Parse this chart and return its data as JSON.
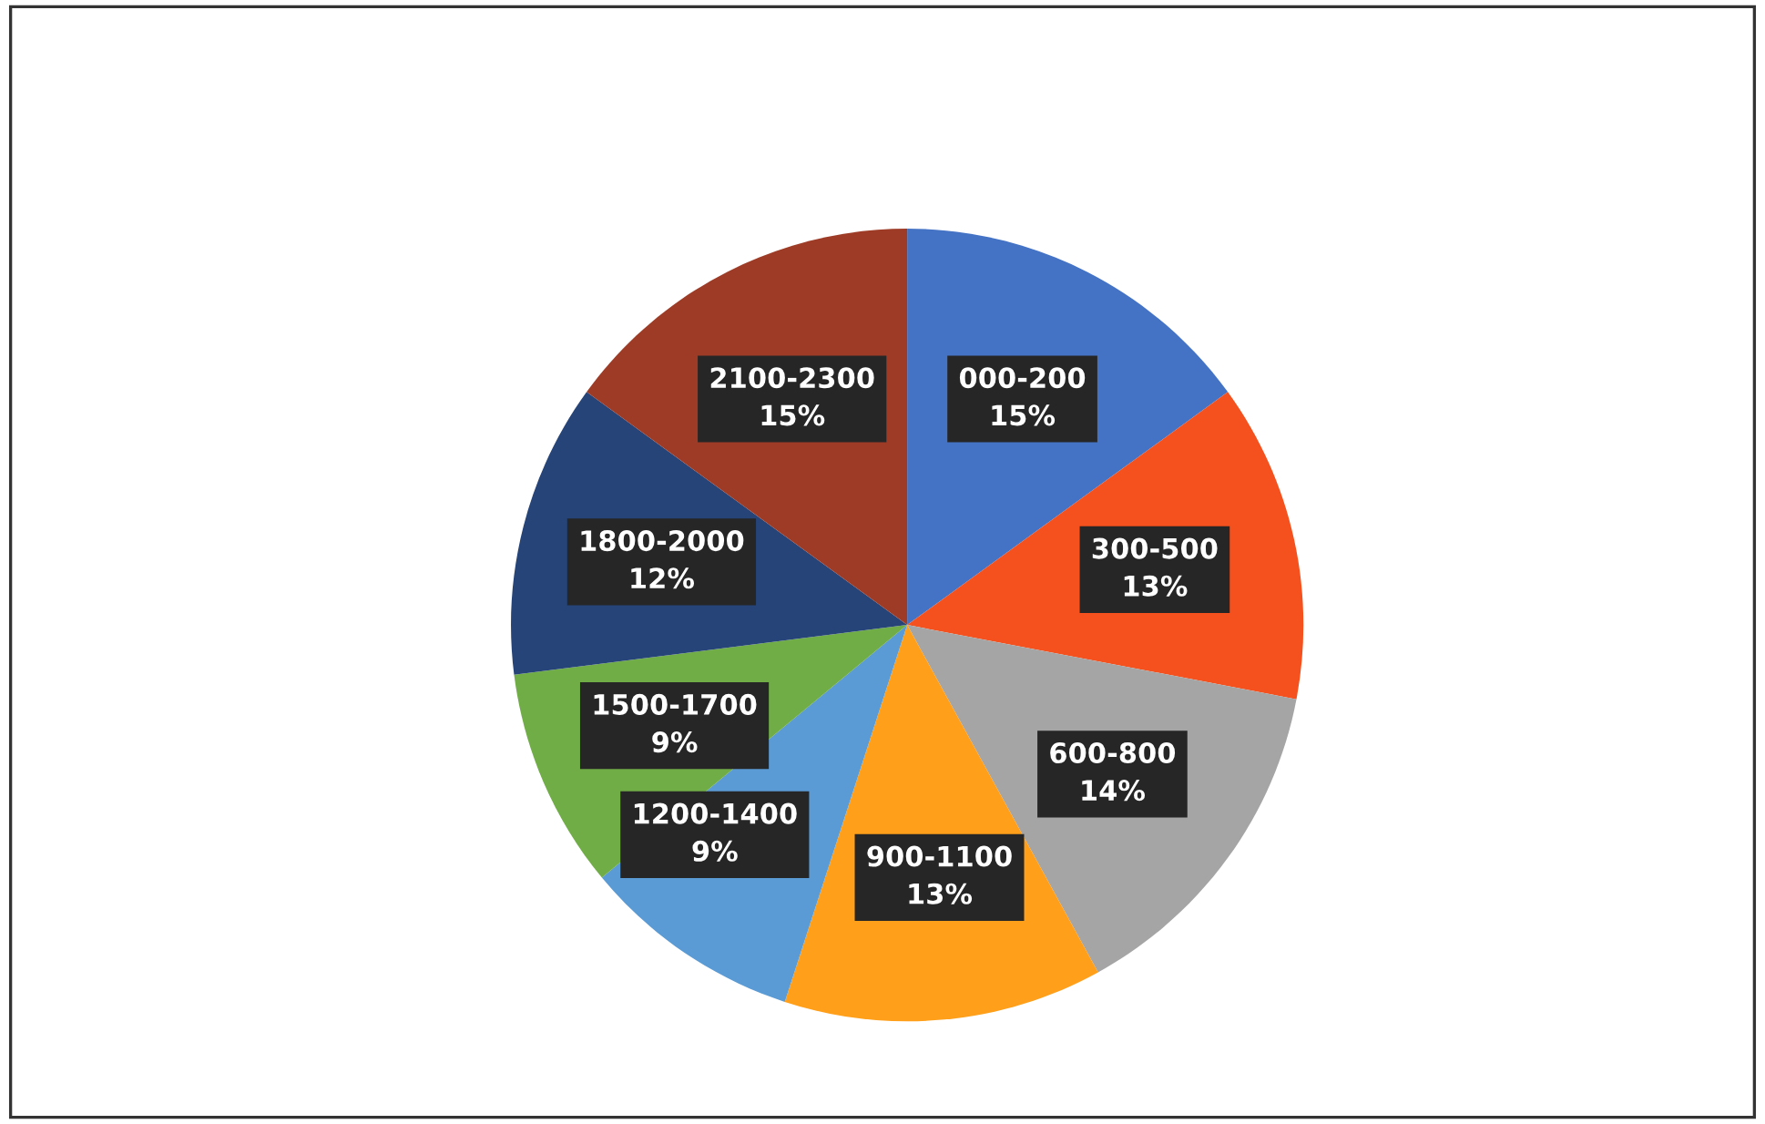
{
  "chart_data": {
    "type": "pie",
    "categories": [
      "000-200",
      "300-500",
      "600-800",
      "900-1100",
      "1200-1400",
      "1500-1700",
      "1800-2000",
      "2100-2300"
    ],
    "values": [
      15,
      13,
      14,
      13,
      9,
      9,
      12,
      15
    ],
    "value_labels": [
      "15%",
      "13%",
      "14%",
      "13%",
      "9%",
      "9%",
      "12%",
      "15%"
    ],
    "colors": [
      "#4472c4",
      "#f4511e",
      "#a5a5a5",
      "#ff9f1a",
      "#5b9bd5",
      "#70ad47",
      "#264478",
      "#9e3b26"
    ],
    "legend": false
  }
}
